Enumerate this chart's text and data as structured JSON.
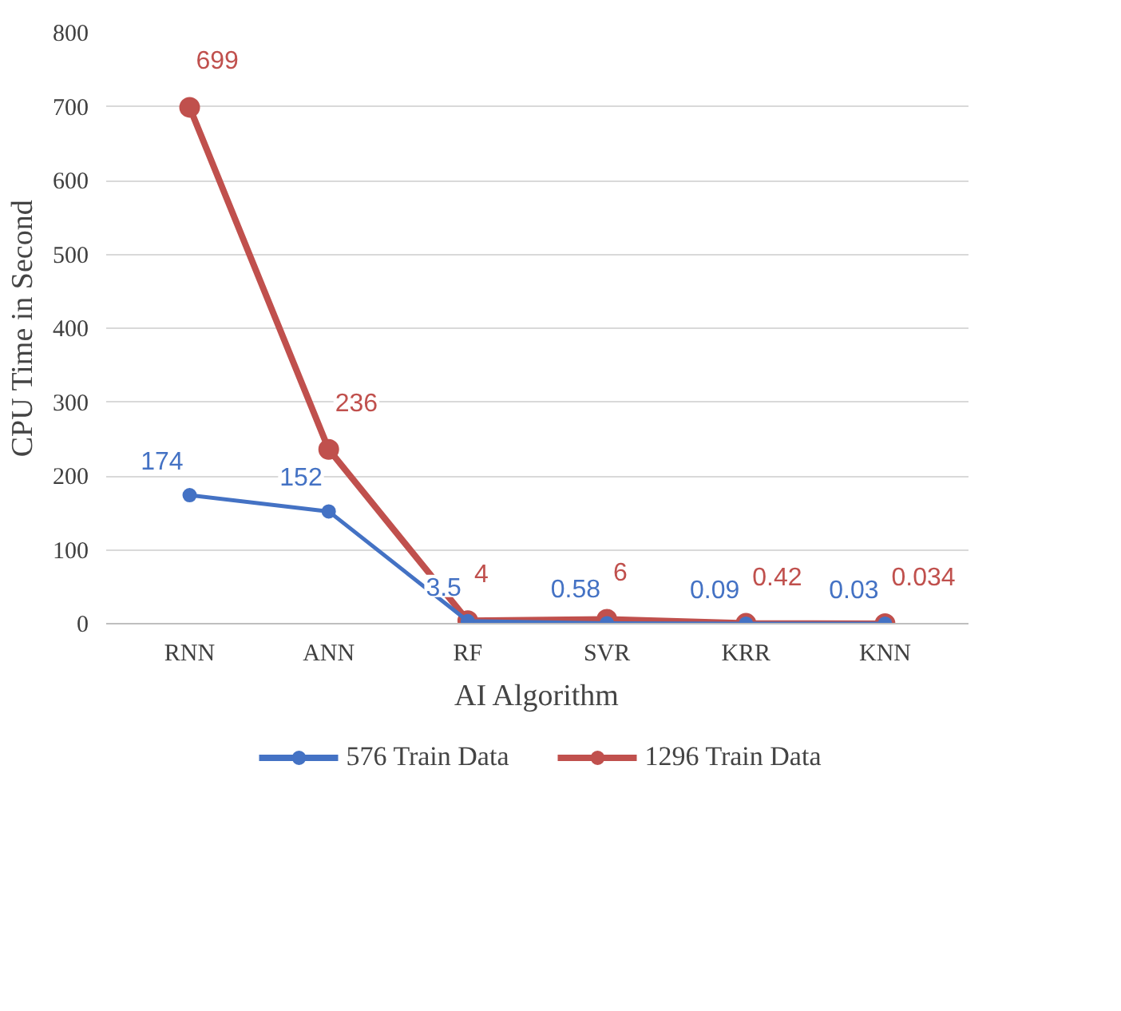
{
  "chart_data": {
    "type": "line",
    "xlabel": "AI Algorithm",
    "ylabel": "CPU Time in Second",
    "categories": [
      "RNN",
      "ANN",
      "RF",
      "SVR",
      "KRR",
      "KNN"
    ],
    "series": [
      {
        "name": "576 Train Data",
        "color": "#4472c4",
        "values": [
          174,
          152,
          3.5,
          0.58,
          0.09,
          0.03
        ]
      },
      {
        "name": "1296 Train Data",
        "color": "#c0504d",
        "values": [
          699,
          236,
          4,
          6,
          0.42,
          0.034
        ]
      }
    ],
    "ylim": [
      0,
      800
    ],
    "yticks": [
      0,
      100,
      200,
      300,
      400,
      500,
      600,
      700,
      800
    ],
    "grid": "y",
    "legend": "bottom",
    "marker": "circle",
    "line_style": "solid",
    "data_labels": true
  }
}
